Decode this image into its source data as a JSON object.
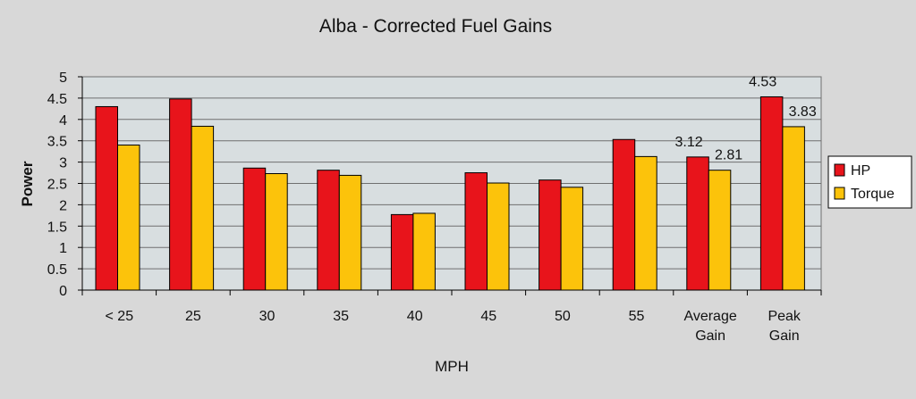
{
  "chart_data": {
    "type": "bar",
    "title": "Alba - Corrected Fuel Gains",
    "xlabel": "MPH",
    "ylabel": "Power",
    "ylim": [
      0,
      5
    ],
    "yticks": [
      "0",
      "0.5",
      "1",
      "1.5",
      "2",
      "2.5",
      "3",
      "3.5",
      "4",
      "4.5",
      "5"
    ],
    "grid": true,
    "legend_position": "right",
    "categories": [
      [
        "< 25"
      ],
      [
        "25"
      ],
      [
        "30"
      ],
      [
        "35"
      ],
      [
        "40"
      ],
      [
        "45"
      ],
      [
        "50"
      ],
      [
        "55"
      ],
      [
        "Average",
        "Gain"
      ],
      [
        "Peak",
        "Gain"
      ]
    ],
    "series": [
      {
        "name": "HP",
        "color": "#e8141b",
        "values": [
          4.3,
          4.48,
          2.86,
          2.81,
          1.77,
          2.75,
          2.58,
          3.53,
          3.12,
          4.53
        ],
        "data_labels": [
          "",
          "",
          "",
          "",
          "",
          "",
          "",
          "",
          "3.12",
          "4.53"
        ]
      },
      {
        "name": "Torque",
        "color": "#fcc30b",
        "values": [
          3.4,
          3.84,
          2.73,
          2.69,
          1.8,
          2.51,
          2.41,
          3.13,
          2.81,
          3.83
        ],
        "data_labels": [
          "",
          "",
          "",
          "",
          "",
          "",
          "",
          "",
          "2.81",
          "3.83"
        ]
      }
    ],
    "colors": {
      "background": "#d8d8d8",
      "plot_area": "#d8dee0",
      "gridline": "#6f6f6f",
      "bar_outline": "#000000"
    }
  }
}
